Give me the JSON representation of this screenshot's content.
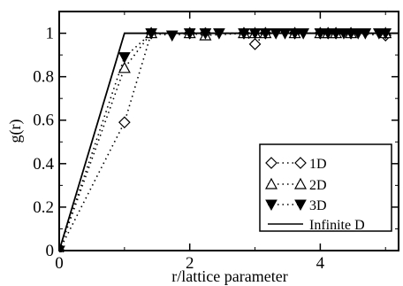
{
  "chart_data": {
    "type": "line",
    "xlabel": "r/lattice parameter",
    "ylabel": "g(r)",
    "xlim": [
      0,
      5.2
    ],
    "ylim": [
      0,
      1.1
    ],
    "x_ticks": [
      0,
      2,
      4
    ],
    "y_ticks": [
      0,
      0.2,
      0.4,
      0.6,
      0.8,
      1
    ],
    "grid": false,
    "legend_position": "right",
    "series": [
      {
        "name": "1D",
        "marker": "diamond-open",
        "line": "dotted",
        "x": [
          0,
          1,
          1.41,
          2,
          2.24,
          2.83,
          3,
          3.16,
          3.61,
          4,
          4.12,
          4.24,
          4.47,
          5
        ],
        "y": [
          0,
          0.59,
          1.0,
          1.0,
          1.0,
          1.0,
          0.95,
          1.0,
          1.0,
          1.0,
          1.0,
          1.0,
          1.0,
          0.99
        ]
      },
      {
        "name": "2D",
        "marker": "triangle-open",
        "line": "dotted",
        "x": [
          0,
          1,
          1.41,
          2,
          2.24,
          2.83,
          3,
          3.16,
          3.61,
          4,
          4.12,
          4.24,
          4.47,
          5
        ],
        "y": [
          0,
          0.84,
          1.0,
          1.0,
          0.99,
          1.0,
          1.0,
          1.0,
          1.0,
          1.0,
          1.0,
          1.0,
          1.0,
          1.0
        ]
      },
      {
        "name": "3D",
        "marker": "triangle-down-filled",
        "line": "dotted",
        "x": [
          0,
          1,
          1.41,
          1.73,
          2,
          2.24,
          2.45,
          2.83,
          3,
          3.16,
          3.32,
          3.46,
          3.61,
          3.74,
          4,
          4.12,
          4.24,
          4.36,
          4.47,
          4.58,
          4.69,
          4.9,
          5
        ],
        "y": [
          0,
          0.89,
          1.0,
          0.99,
          1.0,
          1.0,
          1.0,
          1.0,
          1.0,
          1.0,
          1.0,
          1.0,
          1.0,
          1.0,
          1.0,
          1.0,
          1.0,
          1.0,
          1.0,
          1.0,
          1.0,
          1.0,
          1.0
        ]
      },
      {
        "name": "Infinite D",
        "marker": "none",
        "line": "solid",
        "x": [
          0,
          1,
          5.2
        ],
        "y": [
          0,
          1,
          1
        ]
      }
    ]
  }
}
